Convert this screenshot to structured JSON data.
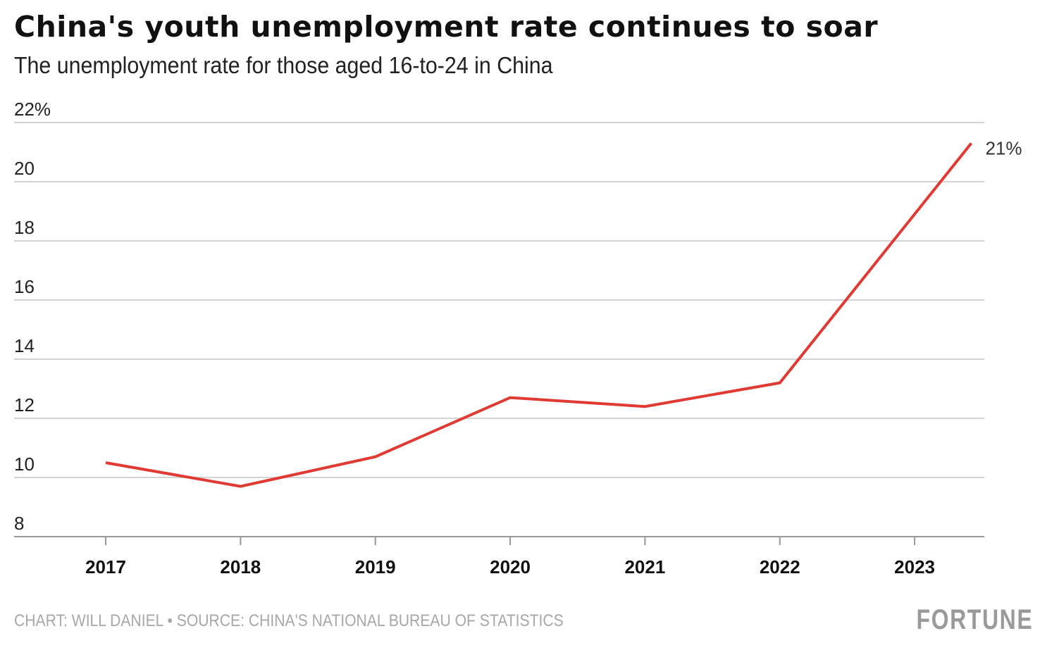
{
  "chart_data": {
    "type": "line",
    "title": "China's youth unemployment rate continues to soar",
    "subtitle": "The unemployment rate for those aged 16-to-24 in China",
    "xlabel": "",
    "ylabel": "",
    "ylim": [
      8,
      22
    ],
    "xlim": [
      2016.6,
      2023.5
    ],
    "y_ticks": [
      8,
      10,
      12,
      14,
      16,
      18,
      20,
      22
    ],
    "y_tick_labels": [
      "8",
      "10",
      "12",
      "14",
      "16",
      "18",
      "20",
      "22%"
    ],
    "x_ticks": [
      2017,
      2018,
      2019,
      2020,
      2021,
      2022,
      2023
    ],
    "x_tick_labels": [
      "2017",
      "2018",
      "2019",
      "2020",
      "2021",
      "2022",
      "2023"
    ],
    "grid": "horizontal",
    "series": [
      {
        "x": [
          2017,
          2018,
          2019,
          2020,
          2021,
          2022,
          2023.42
        ],
        "y": [
          10.5,
          9.7,
          10.7,
          12.7,
          12.4,
          13.2,
          21.3
        ],
        "color": "#e03a33"
      }
    ],
    "end_label": "21%"
  },
  "footer": {
    "credit": "CHART: WILL DANIEL • SOURCE: CHINA'S NATIONAL BUREAU OF STATISTICS",
    "logo": "FORTUNE"
  }
}
